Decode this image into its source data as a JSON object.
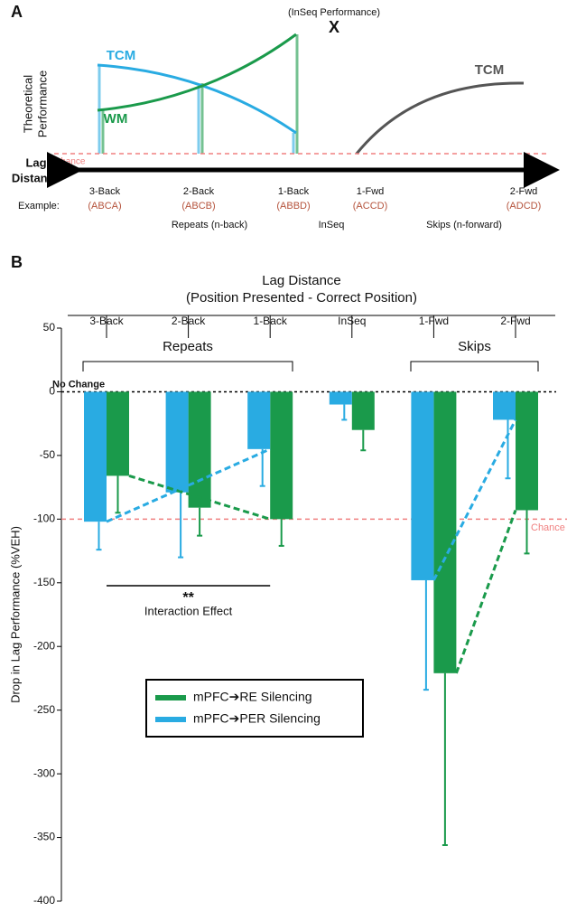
{
  "panel_a": {
    "label": "A",
    "annotation": "(InSeq Performance)",
    "marker": "X",
    "y_label": [
      "Theoretical",
      "Performance"
    ],
    "curves": [
      "TCM",
      "WM",
      "TCM"
    ],
    "chance": "Chance",
    "axis_label": [
      "Lag",
      "Distance"
    ],
    "example_label": "Example:",
    "lags": [
      {
        "name": "3-Back",
        "example": "(ABCA)"
      },
      {
        "name": "2-Back",
        "example": "(ABCB)"
      },
      {
        "name": "1-Back",
        "example": "(ABBD)"
      },
      {
        "name": "1-Fwd",
        "example": "(ACCD)"
      },
      {
        "name": "2-Fwd",
        "example": "(ADCD)"
      }
    ],
    "groups": [
      "Repeats (n-back)",
      "InSeq",
      "Skips (n-forward)"
    ]
  },
  "chart_data": {
    "type": "bar",
    "panel_label": "B",
    "title": "Lag Distance",
    "subtitle": "(Position Presented - Correct Position)",
    "y_label": "Drop in Lag Performance (%VEH)",
    "categories": [
      "3-Back",
      "2-Back",
      "1-Back",
      "InSeq",
      "1-Fwd",
      "2-Fwd"
    ],
    "series": [
      {
        "name": "mPFC➔RE Silencing",
        "color": "#1a9a4b",
        "values": [
          -66,
          -91,
          -100,
          -30,
          -221,
          -93
        ],
        "errors": [
          29,
          22,
          21,
          16,
          135,
          34
        ]
      },
      {
        "name": "mPFC➔PER Silencing",
        "color": "#29abe2",
        "values": [
          -102,
          -79,
          -45,
          -10,
          -148,
          -22
        ],
        "errors": [
          22,
          51,
          29,
          12,
          86,
          46
        ]
      }
    ],
    "ylim": [
      -400,
      50
    ],
    "yticks": [
      -400,
      -350,
      -300,
      -250,
      -200,
      -150,
      -100,
      -50,
      0,
      50
    ],
    "reference_lines": [
      {
        "value": 0,
        "label": "No Change"
      },
      {
        "value": -100,
        "label": "Chance"
      }
    ],
    "groups": [
      "Repeats",
      "Skips"
    ],
    "interaction": {
      "stars": "**",
      "text": "Interaction Effect"
    }
  }
}
